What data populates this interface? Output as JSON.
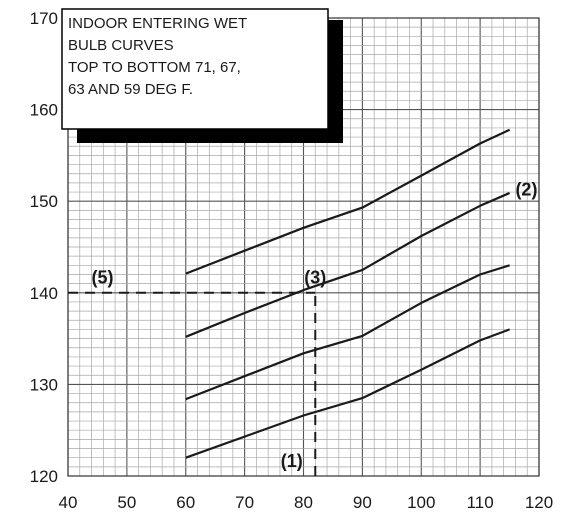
{
  "chart_data": {
    "type": "line",
    "title": "",
    "xlabel": "",
    "ylabel": "",
    "xlim": [
      40,
      120
    ],
    "ylim": [
      120,
      170
    ],
    "x_ticks": [
      40,
      50,
      60,
      70,
      80,
      90,
      100,
      110,
      120
    ],
    "y_ticks": [
      120,
      130,
      140,
      150,
      160,
      170
    ],
    "x_tick_labels": [
      "40",
      "50",
      "60",
      "70",
      "80",
      "90",
      "100",
      "110",
      "120"
    ],
    "y_tick_labels": [
      "120",
      "130",
      "140",
      "150",
      "160",
      "170"
    ],
    "minor_grid_step_x": 2,
    "minor_grid_step_y": 1,
    "grid": true,
    "series": [
      {
        "wet_bulb": 71,
        "points": [
          [
            60,
            142.1
          ],
          [
            70,
            144.6
          ],
          [
            80,
            147.1
          ],
          [
            90,
            149.3
          ],
          [
            100,
            152.8
          ],
          [
            110,
            156.3
          ],
          [
            115,
            157.8
          ]
        ]
      },
      {
        "wet_bulb": 67,
        "points": [
          [
            60,
            135.2
          ],
          [
            70,
            137.8
          ],
          [
            80,
            140.3
          ],
          [
            90,
            142.5
          ],
          [
            100,
            146.2
          ],
          [
            110,
            149.5
          ],
          [
            115,
            150.9
          ]
        ]
      },
      {
        "wet_bulb": 63,
        "points": [
          [
            60,
            128.4
          ],
          [
            70,
            130.9
          ],
          [
            80,
            133.4
          ],
          [
            90,
            135.3
          ],
          [
            100,
            138.9
          ],
          [
            110,
            142.0
          ],
          [
            115,
            143.0
          ]
        ]
      },
      {
        "wet_bulb": 59,
        "points": [
          [
            60,
            122.0
          ],
          [
            70,
            124.3
          ],
          [
            80,
            126.6
          ],
          [
            90,
            128.5
          ],
          [
            100,
            131.6
          ],
          [
            110,
            134.8
          ],
          [
            115,
            136.0
          ]
        ]
      }
    ],
    "reference_lines": [
      {
        "from": [
          82,
          120
        ],
        "to": [
          82,
          140
        ],
        "style": "dashed"
      },
      {
        "from": [
          40,
          140
        ],
        "to": [
          82,
          140
        ],
        "style": "dashed"
      }
    ],
    "point_labels": [
      {
        "text": "(1)",
        "x": 78,
        "y": 121
      },
      {
        "text": "(2)",
        "x": 116,
        "y": 150.6
      },
      {
        "text": "(3)",
        "x": 82,
        "y": 141
      },
      {
        "text": "(5)",
        "x": 44,
        "y": 141
      }
    ],
    "annotation": {
      "lines": [
        "INDOOR ENTERING WET",
        "BULB CURVES",
        "TOP TO BOTTOM 71, 67,",
        "63 AND 59 DEG F."
      ]
    }
  }
}
